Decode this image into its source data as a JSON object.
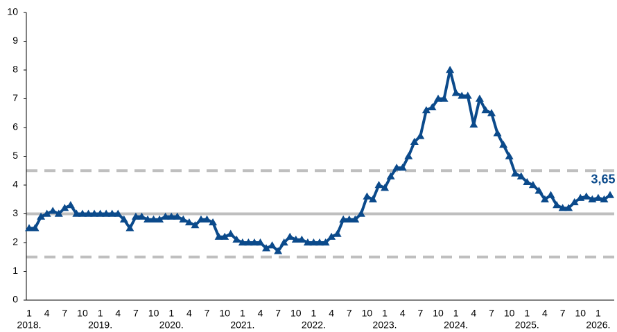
{
  "chart_data": {
    "type": "line",
    "categories": [
      "1",
      null,
      null,
      "4",
      null,
      null,
      "7",
      null,
      null,
      "10",
      null,
      null,
      "1",
      null,
      null,
      "4",
      null,
      null,
      "7",
      null,
      null,
      "10",
      null,
      null,
      "1",
      null,
      null,
      "4",
      null,
      null,
      "7",
      null,
      null,
      "10",
      null,
      null,
      "1",
      null,
      null,
      "4",
      null,
      null,
      "7",
      null,
      null,
      "10",
      null,
      null,
      "1",
      null,
      null,
      "4",
      null,
      null,
      "7",
      null,
      null,
      "10",
      null,
      null,
      "1",
      null,
      null,
      "4",
      null,
      null,
      "7",
      null,
      null,
      "10",
      null,
      null,
      "1",
      null,
      null,
      "4",
      null,
      null,
      "7",
      null,
      null,
      "10",
      null,
      null,
      "1",
      null,
      null,
      "4",
      null,
      null,
      "7",
      null,
      null,
      "10",
      null,
      null,
      "1",
      null,
      null
    ],
    "category_years": [
      "2018.",
      null,
      null,
      null,
      null,
      null,
      null,
      null,
      null,
      null,
      null,
      null,
      "2019.",
      null,
      null,
      null,
      null,
      null,
      null,
      null,
      null,
      null,
      null,
      null,
      "2020.",
      null,
      null,
      null,
      null,
      null,
      null,
      null,
      null,
      null,
      null,
      null,
      "2021.",
      null,
      null,
      null,
      null,
      null,
      null,
      null,
      null,
      null,
      null,
      null,
      "2022.",
      null,
      null,
      null,
      null,
      null,
      null,
      null,
      null,
      null,
      null,
      null,
      "2023.",
      null,
      null,
      null,
      null,
      null,
      null,
      null,
      null,
      null,
      null,
      null,
      "2024.",
      null,
      null,
      null,
      null,
      null,
      null,
      null,
      null,
      null,
      null,
      null,
      "2025.",
      null,
      null,
      null,
      null,
      null,
      null,
      null,
      null,
      null,
      null,
      null,
      "2026.",
      null,
      null
    ],
    "values": [
      2.5,
      2.5,
      2.9,
      3.0,
      3.1,
      3.0,
      3.2,
      3.3,
      3.0,
      3.0,
      3.0,
      3.0,
      3.0,
      3.0,
      3.0,
      3.0,
      2.8,
      2.5,
      2.9,
      2.9,
      2.8,
      2.8,
      2.8,
      2.9,
      2.9,
      2.9,
      2.8,
      2.7,
      2.6,
      2.8,
      2.8,
      2.7,
      2.2,
      2.2,
      2.3,
      2.1,
      2.0,
      2.0,
      2.0,
      2.0,
      1.8,
      1.9,
      1.7,
      2.0,
      2.2,
      2.1,
      2.1,
      2.0,
      2.0,
      2.0,
      2.0,
      2.2,
      2.3,
      2.8,
      2.8,
      2.8,
      3.0,
      3.6,
      3.5,
      4.0,
      3.9,
      4.3,
      4.6,
      4.6,
      5.0,
      5.5,
      5.7,
      6.6,
      6.7,
      7.0,
      7.0,
      8.0,
      7.2,
      7.1,
      7.1,
      6.1,
      7.0,
      6.6,
      6.5,
      5.8,
      5.4,
      5.0,
      4.4,
      4.3,
      4.1,
      4.0,
      3.8,
      3.5,
      3.65,
      3.3,
      3.2,
      3.2,
      3.4,
      3.55,
      3.6,
      3.5,
      3.55,
      3.5,
      3.65
    ],
    "value_labels": [
      null,
      null,
      null,
      null,
      null,
      null,
      null,
      null,
      null,
      null,
      null,
      null,
      null,
      null,
      null,
      null,
      null,
      null,
      null,
      null,
      null,
      null,
      null,
      null,
      null,
      null,
      null,
      null,
      null,
      null,
      null,
      null,
      null,
      null,
      null,
      null,
      null,
      null,
      null,
      null,
      null,
      null,
      null,
      null,
      null,
      null,
      null,
      null,
      null,
      null,
      null,
      null,
      null,
      null,
      null,
      null,
      null,
      null,
      null,
      null,
      null,
      null,
      null,
      null,
      null,
      null,
      null,
      null,
      null,
      null,
      null,
      null,
      null,
      null,
      null,
      null,
      null,
      null,
      null,
      null,
      null,
      null,
      null,
      null,
      null,
      null,
      null,
      null,
      null,
      null,
      null,
      null,
      null,
      null,
      null,
      null,
      null,
      null,
      "3,65"
    ],
    "color": "#0b4a8b",
    "marker": "triangle",
    "ylim": [
      0,
      10
    ],
    "yticks": [
      0,
      1,
      2,
      3,
      4,
      5,
      6,
      7,
      8,
      9,
      10
    ],
    "grid": false,
    "reference_lines": [
      {
        "value": 3,
        "style": "solid",
        "color": "#bfbfbf"
      },
      {
        "value": 1.5,
        "style": "dashed",
        "color": "#bfbfbf"
      },
      {
        "value": 4.5,
        "style": "dashed",
        "color": "#bfbfbf"
      }
    ]
  }
}
